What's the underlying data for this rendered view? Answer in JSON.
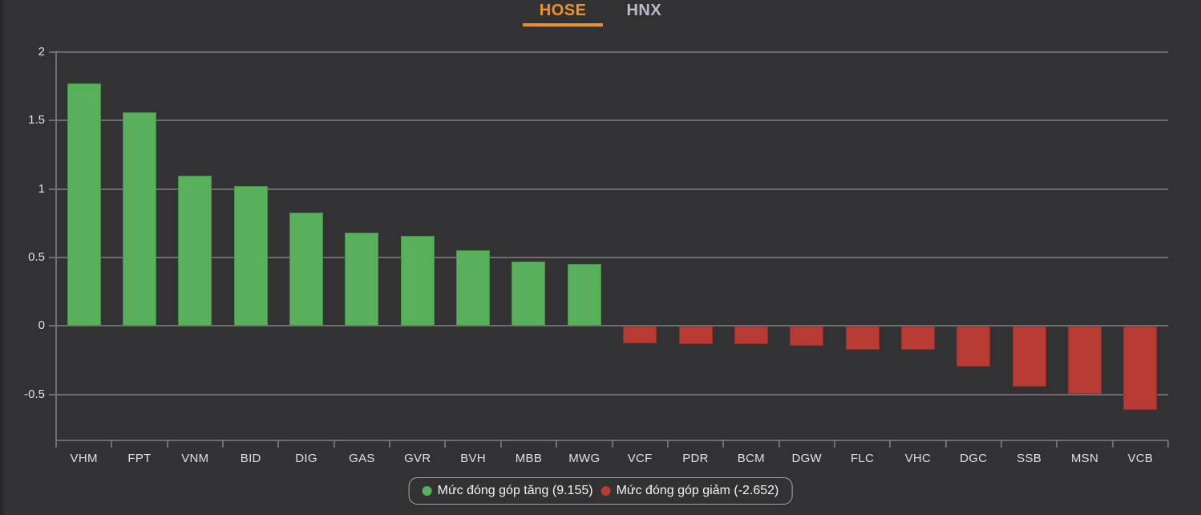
{
  "tabs": [
    {
      "label": "HOSE",
      "active": true
    },
    {
      "label": "HNX",
      "active": false
    }
  ],
  "chart_data": {
    "type": "bar",
    "title": "",
    "xlabel": "",
    "ylabel": "",
    "categories": [
      "VHM",
      "FPT",
      "VNM",
      "BID",
      "DIG",
      "GAS",
      "GVR",
      "BVH",
      "MBB",
      "MWG",
      "VCF",
      "PDR",
      "BCM",
      "DGW",
      "FLC",
      "VHC",
      "DGC",
      "SSB",
      "MSN",
      "VCB"
    ],
    "values": [
      1.77,
      1.56,
      1.1,
      1.02,
      0.83,
      0.68,
      0.66,
      0.55,
      0.47,
      0.45,
      -0.12,
      -0.13,
      -0.13,
      -0.14,
      -0.17,
      -0.17,
      -0.29,
      -0.44,
      -0.49,
      -0.61
    ],
    "yticks": [
      2,
      1.5,
      1,
      0.5,
      0,
      -0.5
    ],
    "ylim": [
      -0.84,
      2
    ],
    "grid": true,
    "legend_position": "bottom",
    "legend": [
      {
        "label": "Mức đóng góp tăng (9.155)",
        "color": "#58b15a"
      },
      {
        "label": "Mức đóng góp giảm (-2.652)",
        "color": "#b73a33"
      }
    ],
    "colors": {
      "positive": "#58b15a",
      "negative": "#b73a33",
      "tab_active": "#f5921d",
      "tab_inactive": "#b9bdc7",
      "background": "#323234",
      "grid": "#6e6e71",
      "label": "#e0e0e3"
    }
  }
}
